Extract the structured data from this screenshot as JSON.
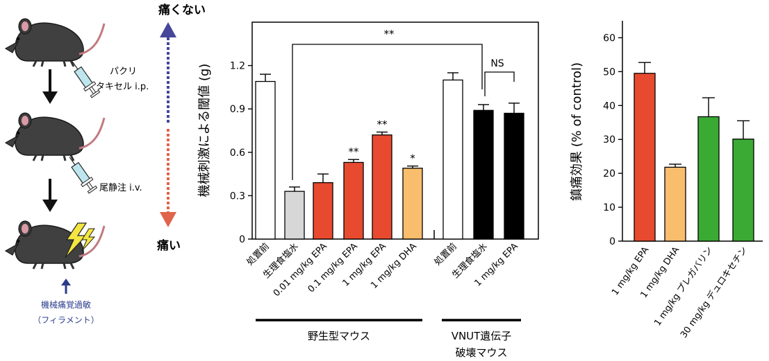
{
  "schematic": {
    "drug1": [
      "パクリ",
      "タキセル i.p."
    ],
    "drug2": "尾静注 i.v.",
    "outcome": [
      "機械痛覚過敏",
      "（フィラメント）"
    ]
  },
  "pain_scale": {
    "top": "痛くない",
    "bottom": "痛い"
  },
  "colors": {
    "red": "#e84a2f",
    "orange": "#f9bd6e",
    "gray": "#d7d7d7",
    "green": "#3aaa35",
    "black": "#000000",
    "white": "#ffffff",
    "arrow_blue": "#46469a",
    "arrow_red": "#e0644c",
    "schematic_blue": "#2a3c8c"
  },
  "chart_data": [
    {
      "type": "bar",
      "title": "",
      "xlabel": "",
      "ylabel": "機械刺激による閾値 (g)",
      "ylim": [
        0,
        1.5
      ],
      "yticks": [
        0,
        0.3,
        0.6,
        0.9,
        1.2
      ],
      "ytick_labels": [
        "0",
        "0.3",
        "0.6",
        "0.9",
        "1.2"
      ],
      "categories": [
        "処置前",
        "生理食塩水",
        "0.01 mg/kg EPA",
        "0.1 mg/kg EPA",
        "1 mg/kg EPA",
        "1 mg/kg DHA",
        "処置前",
        "生理食塩水",
        "1 mg/kg EPA"
      ],
      "values": [
        1.09,
        0.33,
        0.39,
        0.53,
        0.72,
        0.49,
        1.1,
        0.89,
        0.87
      ],
      "errors": [
        0.05,
        0.03,
        0.06,
        0.02,
        0.02,
        0.015,
        0.05,
        0.04,
        0.07
      ],
      "bar_colors": [
        "white",
        "gray",
        "red",
        "red",
        "red",
        "orange",
        "white",
        "black",
        "black"
      ],
      "significance": [
        "",
        "",
        "",
        "**",
        "**",
        "*",
        "",
        "",
        ""
      ],
      "bracket_labels": {
        "saline_vs_vnut": "**",
        "vnut_ns": "NS"
      },
      "groups": [
        {
          "label": "野生型マウス",
          "from": 0,
          "to": 5
        },
        {
          "label": [
            "VNUT遺伝子",
            "破壊マウス"
          ],
          "from": 6,
          "to": 8
        }
      ]
    },
    {
      "type": "bar",
      "title": "",
      "xlabel": "",
      "ylabel": "鎮痛効果 (% of control)",
      "ylim": [
        0,
        65
      ],
      "yticks": [
        0,
        10,
        20,
        30,
        40,
        50,
        60
      ],
      "categories": [
        "1 mg/kg EPA",
        "1 mg/kg DHA",
        "1 mg/kg プレガバリン",
        "30 mg/kg デュロキセチン"
      ],
      "values": [
        49.5,
        21.8,
        36.7,
        30.1
      ],
      "errors": [
        3.2,
        0.9,
        5.6,
        5.4
      ],
      "bar_colors": [
        "red",
        "orange",
        "green",
        "green"
      ]
    }
  ]
}
